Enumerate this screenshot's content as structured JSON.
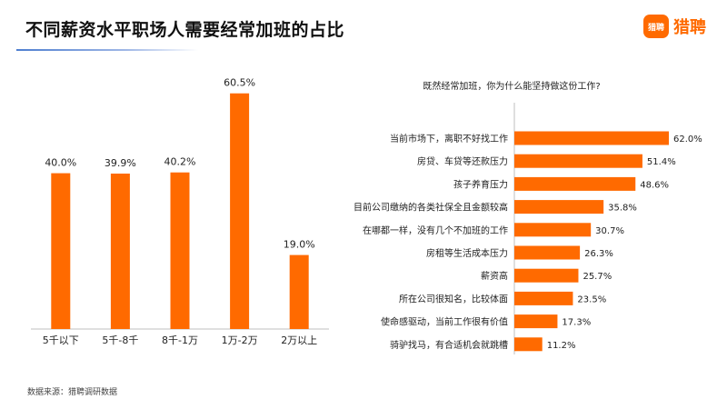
{
  "page": {
    "title": "不同薪资水平职场人需要经常加班的占比",
    "logo_text": "猎聘",
    "logo_badge_text": "猎聘",
    "source": "数据来源：猎聘调研数据",
    "accent_color": "#ff6a00"
  },
  "chart_data": [
    {
      "type": "bar",
      "title": "不同薪资水平职场人需要经常加班的占比",
      "categories": [
        "5千以下",
        "5千-8千",
        "8千-1万",
        "1万-2万",
        "2万以上"
      ],
      "values": [
        40.0,
        39.9,
        40.2,
        60.5,
        19.0
      ],
      "value_labels": [
        "40.0%",
        "39.9%",
        "40.2%",
        "60.5%",
        "19.0%"
      ],
      "unit": "%",
      "ylim": [
        0,
        70
      ],
      "grid": false,
      "color": "#ff6a00"
    },
    {
      "type": "bar",
      "orientation": "horizontal",
      "title": "既然经常加班，你为什么能坚持做这份工作?",
      "categories": [
        "当前市场下，离职不好找工作",
        "房贷、车贷等还款压力",
        "孩子养育压力",
        "目前公司缴纳的各类社保全且金额较高",
        "在哪都一样，没有几个不加班的工作",
        "房租等生活成本压力",
        "薪资高",
        "所在公司很知名，比较体面",
        "使命感驱动，当前工作很有价值",
        "骑驴找马，有合适机会就跳槽"
      ],
      "values": [
        62.0,
        51.4,
        48.6,
        35.8,
        30.7,
        26.3,
        25.7,
        23.5,
        17.3,
        11.2
      ],
      "value_labels": [
        "62.0%",
        "51.4%",
        "48.6%",
        "35.8%",
        "30.7%",
        "26.3%",
        "25.7%",
        "23.5%",
        "17.3%",
        "11.2%"
      ],
      "unit": "%",
      "xlim": [
        0,
        62
      ],
      "grid": false,
      "color": "#ff6a00"
    }
  ]
}
